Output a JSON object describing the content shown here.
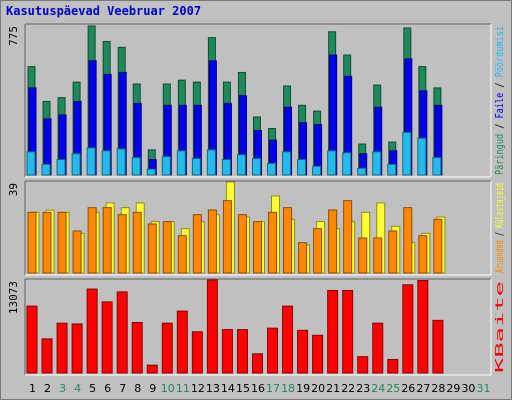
{
  "title": "Kasutuspäevad Veebruar 2007",
  "colors": {
    "background": "#c0c0c0",
    "hits": "#1e8a5c",
    "files": "#0000ee",
    "pages": "#22bbee",
    "visits": "#ff8800",
    "sites": "#ffff33",
    "kbytes": "#ff0000",
    "weekday_label": "#000000",
    "weekend_label": "#1e8a5c"
  },
  "chart_data": [
    {
      "type": "bar",
      "panel": "top",
      "categories": [
        "1",
        "2",
        "3",
        "4",
        "5",
        "6",
        "7",
        "8",
        "9",
        "10",
        "11",
        "12",
        "13",
        "14",
        "15",
        "16",
        "17",
        "18",
        "19",
        "20",
        "21",
        "22",
        "23",
        "24",
        "25",
        "26",
        "27",
        "28",
        "29",
        "30",
        "31"
      ],
      "weekend_days": [
        "3",
        "4",
        "10",
        "11",
        "17",
        "18",
        "24",
        "25",
        "31"
      ],
      "ymax_label": "775",
      "ylim": [
        0,
        775
      ],
      "right_label_parts": [
        "Päringud",
        "Faile",
        "Pöördumisi"
      ],
      "series": [
        {
          "name": "Päringud",
          "color_key": "hits",
          "values": [
            560,
            380,
            400,
            480,
            770,
            690,
            660,
            470,
            130,
            470,
            490,
            480,
            710,
            480,
            530,
            300,
            240,
            460,
            360,
            330,
            740,
            620,
            160,
            465,
            170,
            760,
            560,
            450,
            0,
            0,
            0
          ]
        },
        {
          "name": "Faile",
          "color_key": "files",
          "values": [
            450,
            290,
            310,
            380,
            590,
            520,
            530,
            370,
            80,
            360,
            360,
            360,
            590,
            370,
            410,
            230,
            180,
            350,
            270,
            260,
            620,
            510,
            110,
            350,
            125,
            600,
            435,
            360,
            0,
            0,
            0
          ]
        },
        {
          "name": "Pöördumisi",
          "color_key": "pages",
          "values": [
            120,
            55,
            80,
            110,
            140,
            125,
            135,
            90,
            30,
            95,
            125,
            85,
            130,
            80,
            105,
            85,
            60,
            120,
            80,
            45,
            125,
            115,
            35,
            120,
            55,
            220,
            190,
            90,
            0,
            0,
            0
          ]
        }
      ]
    },
    {
      "type": "bar",
      "panel": "middle",
      "categories": [
        "1",
        "2",
        "3",
        "4",
        "5",
        "6",
        "7",
        "8",
        "9",
        "10",
        "11",
        "12",
        "13",
        "14",
        "15",
        "16",
        "17",
        "18",
        "19",
        "20",
        "21",
        "22",
        "23",
        "24",
        "25",
        "26",
        "27",
        "28",
        "29",
        "30",
        "31"
      ],
      "ymax_label": "39",
      "ylim": [
        0,
        39
      ],
      "right_label_parts": [
        "Aruanded",
        "Külastajaid"
      ],
      "series": [
        {
          "name": "Külastajaid",
          "color_key": "sites",
          "values": [
            26,
            27,
            26,
            17,
            26,
            30,
            28,
            30,
            22,
            22,
            19,
            22,
            25,
            39,
            24,
            22,
            33,
            23,
            12,
            22,
            19,
            22,
            26,
            30,
            20,
            13,
            17,
            24,
            0,
            0,
            0
          ]
        },
        {
          "name": "Aruanded",
          "color_key": "visits",
          "values": [
            26,
            26,
            26,
            18,
            28,
            28,
            25,
            26,
            21,
            22,
            16,
            25,
            27,
            31,
            25,
            22,
            26,
            28,
            13,
            19,
            27,
            31,
            15,
            15,
            18,
            28,
            16,
            23,
            0,
            0,
            0
          ]
        }
      ]
    },
    {
      "type": "bar",
      "panel": "bottom",
      "categories": [
        "1",
        "2",
        "3",
        "4",
        "5",
        "6",
        "7",
        "8",
        "9",
        "10",
        "11",
        "12",
        "13",
        "14",
        "15",
        "16",
        "17",
        "18",
        "19",
        "20",
        "21",
        "22",
        "23",
        "24",
        "25",
        "26",
        "27",
        "28",
        "29",
        "30",
        "31"
      ],
      "ymax_label": "13073",
      "ylim": [
        0,
        13073
      ],
      "right_label_parts": [
        "KBaite"
      ],
      "series": [
        {
          "name": "KBaite",
          "color_key": "kbytes",
          "values": [
            9400,
            4800,
            7000,
            6900,
            11800,
            10000,
            11400,
            7100,
            1100,
            7000,
            8700,
            5800,
            13073,
            6100,
            6100,
            2700,
            6300,
            9400,
            6000,
            5300,
            11600,
            11600,
            2300,
            7000,
            1900,
            12400,
            13000,
            7400,
            0,
            0,
            0
          ]
        }
      ]
    }
  ]
}
